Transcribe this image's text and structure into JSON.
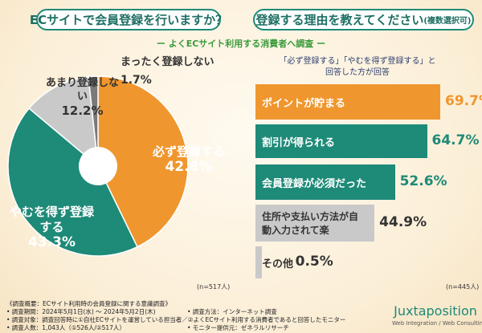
{
  "titles": {
    "left": "ECサイトで会員登録を行いますか？",
    "right": "登録する理由を教えてください",
    "right_suffix": "(複数選択可)",
    "subtitle": "ー よくECサイト利用する消費者へ調査 ー",
    "note_line1": "「必ず登録する」「やむを得ず登録する」と",
    "note_line2": "回答した方が回答"
  },
  "chart_data": [
    {
      "type": "pie",
      "n_label": "(n=517人)",
      "slices": [
        {
          "label": "必ず登録する",
          "value": 42.8,
          "display": "42.8%",
          "color": "#f0962e"
        },
        {
          "label": "やむを得ず登録する",
          "value": 43.3,
          "display": "43.3%",
          "color": "#1e8a78"
        },
        {
          "label": "あまり登録しない",
          "value": 12.2,
          "display": "12.2%",
          "color": "#c9c9c9"
        },
        {
          "label": "まったく登録しない",
          "value": 1.7,
          "display": "1.7%",
          "color": "#7a7a7a"
        }
      ]
    },
    {
      "type": "bar",
      "orientation": "horizontal",
      "n_label": "(n=445人)",
      "xlim": [
        0,
        100
      ],
      "bars": [
        {
          "label": "ポイントが貯まる",
          "value": 69.7,
          "display": "69.7%",
          "color": "#f0962e"
        },
        {
          "label": "割引が得られる",
          "value": 64.7,
          "display": "64.7%",
          "color": "#1e8a78"
        },
        {
          "label": "会員登録が必須だった",
          "value": 52.6,
          "display": "52.6%",
          "color": "#1e8a78"
        },
        {
          "label": "住所や支払い方法が自動入力されて楽",
          "value": 44.9,
          "display": "44.9%",
          "color": "#c9c9c9"
        },
        {
          "label": "その他",
          "value": 0.5,
          "display": "0.5%",
          "color": "#c9c9c9"
        }
      ]
    }
  ],
  "footer": {
    "title": "《調査概要：ECサイト利用時の会員登録に関する意識調査》",
    "period": "• 調査期間：2024年5月1日(水) ～ 2024年5月2日(木)",
    "method": "• 調査方法：インターネット調査",
    "target": "• 調査対象：調査回答時に①自社ECサイトを運営している担当者／②よくECサイト利用する消費者であると回答したモニター",
    "count": "• 調査人数：1,043人（①526人/②517人）",
    "provider": "• モニター提供元：ゼネラルリサーチ"
  },
  "logo": {
    "name": "Juxtaposition",
    "tagline": "Web Integration / Web Consulting"
  }
}
